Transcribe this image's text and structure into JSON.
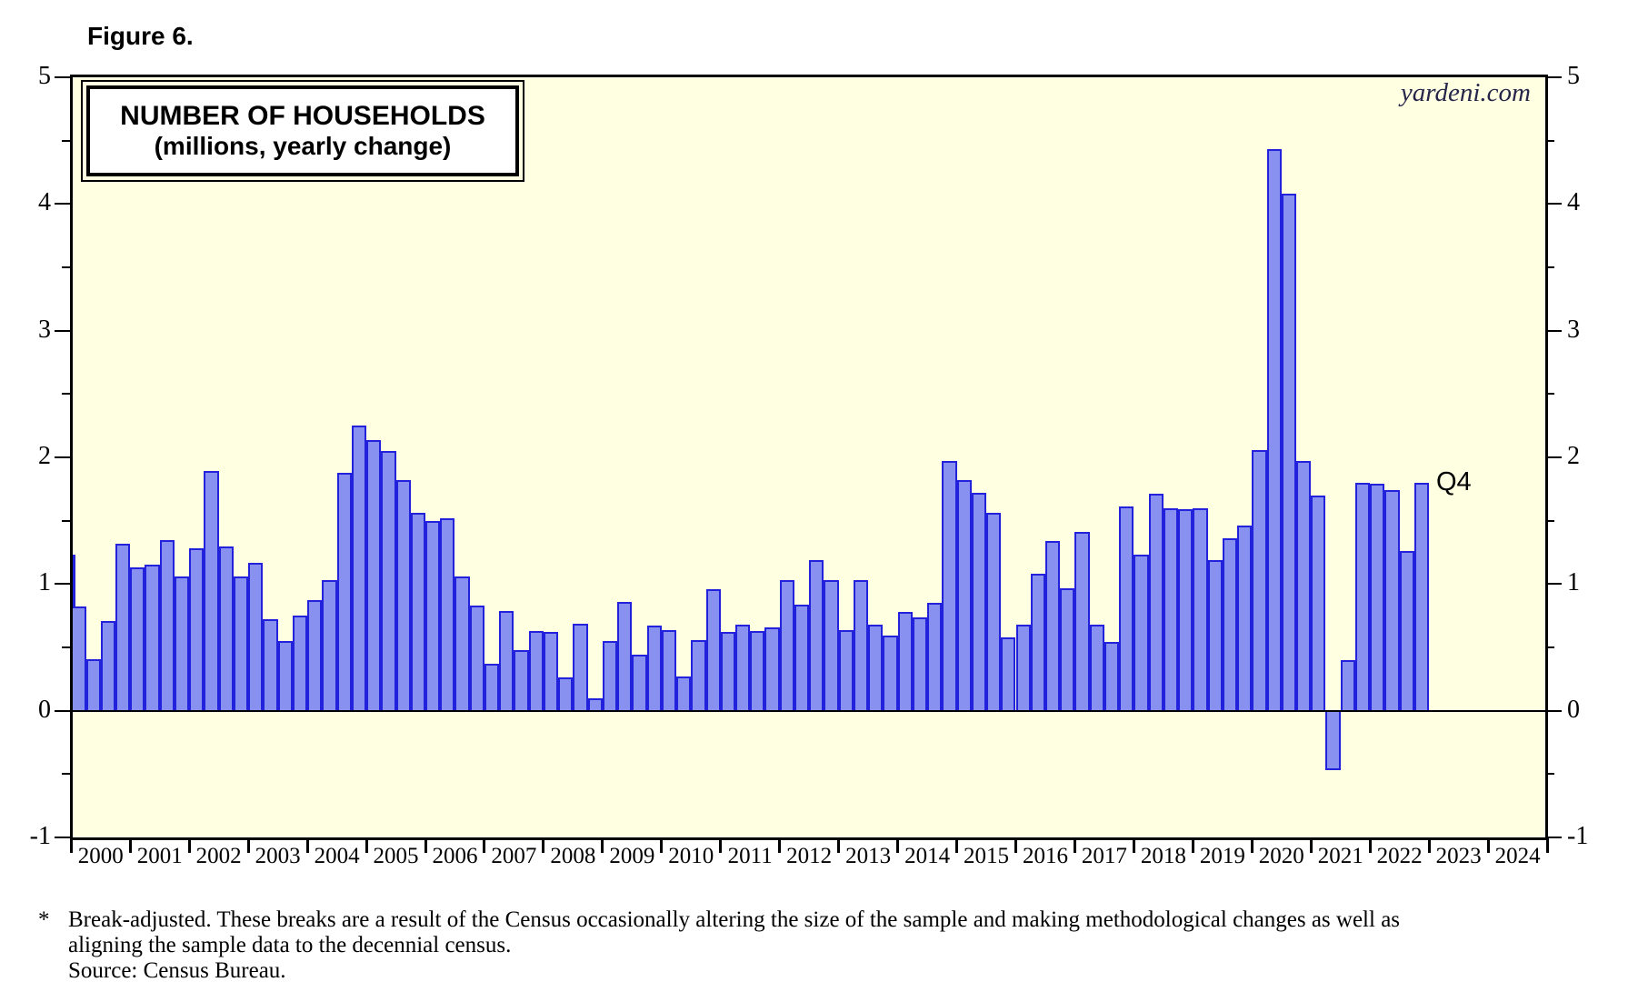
{
  "figure_label": "Figure 6.",
  "watermark": "yardeni.com",
  "footnote": {
    "star": "*",
    "line1": "Break-adjusted. These breaks are a result of the Census occasionally altering the size of the sample and making methodological changes as well as",
    "line2": "aligning the sample data to the decennial census.",
    "source": "Source: Census Bureau."
  },
  "colors": {
    "plot_bg": "#FFFFE1",
    "bar_fill": "#8991F0",
    "bar_border": "#2222DD",
    "frame": "#000000",
    "watermark_color": "#26264a"
  },
  "chart_data": {
    "type": "bar",
    "title": "NUMBER OF HOUSEHOLDS",
    "subtitle": "(millions, yearly change)",
    "units": "millions, yearly change",
    "ylim": [
      -1,
      5
    ],
    "y_major_ticks": [
      5,
      4,
      3,
      2,
      1,
      0,
      -1
    ],
    "y_minor_ticks": [
      4.5,
      3.5,
      2.5,
      1.5,
      0.5,
      -0.5
    ],
    "x_year_labels": [
      2000,
      2001,
      2002,
      2003,
      2004,
      2005,
      2006,
      2007,
      2008,
      2009,
      2010,
      2011,
      2012,
      2013,
      2014,
      2015,
      2016,
      2017,
      2018,
      2019,
      2020,
      2021,
      2022,
      2023,
      2024
    ],
    "grid": "off",
    "last_point_label": "Q4",
    "data_by_year": [
      {
        "year": 1999,
        "values": [
          null,
          null,
          null,
          1.23
        ]
      },
      {
        "year": 2000,
        "values": [
          0.82,
          0.41,
          0.71,
          1.32
        ]
      },
      {
        "year": 2001,
        "values": [
          1.13,
          1.15,
          1.35,
          1.06
        ]
      },
      {
        "year": 2002,
        "values": [
          1.28,
          1.89,
          1.3,
          1.06
        ]
      },
      {
        "year": 2003,
        "values": [
          1.17,
          0.72,
          0.55,
          0.75
        ]
      },
      {
        "year": 2004,
        "values": [
          0.87,
          1.03,
          1.88,
          2.25
        ]
      },
      {
        "year": 2005,
        "values": [
          2.14,
          2.05,
          1.82,
          1.56
        ]
      },
      {
        "year": 2006,
        "values": [
          1.5,
          1.52,
          1.06,
          0.83
        ]
      },
      {
        "year": 2007,
        "values": [
          0.37,
          0.79,
          0.48,
          0.63
        ]
      },
      {
        "year": 2008,
        "values": [
          0.62,
          0.26,
          0.69,
          0.1
        ]
      },
      {
        "year": 2009,
        "values": [
          0.55,
          0.86,
          0.44,
          0.67
        ]
      },
      {
        "year": 2010,
        "values": [
          0.64,
          0.27,
          0.56,
          0.96
        ]
      },
      {
        "year": 2011,
        "values": [
          0.62,
          0.68,
          0.63,
          0.66
        ]
      },
      {
        "year": 2012,
        "values": [
          1.03,
          0.84,
          1.19,
          1.03
        ]
      },
      {
        "year": 2013,
        "values": [
          0.64,
          1.03,
          0.68,
          0.59
        ]
      },
      {
        "year": 2014,
        "values": [
          0.78,
          0.74,
          0.85,
          1.97
        ]
      },
      {
        "year": 2015,
        "values": [
          1.82,
          1.72,
          1.56,
          0.58
        ]
      },
      {
        "year": 2016,
        "values": [
          0.68,
          1.08,
          1.34,
          0.97
        ]
      },
      {
        "year": 2017,
        "values": [
          1.41,
          0.68,
          0.54,
          1.61
        ]
      },
      {
        "year": 2018,
        "values": [
          1.23,
          1.71,
          1.6,
          1.59
        ]
      },
      {
        "year": 2019,
        "values": [
          1.6,
          1.19,
          1.36,
          1.46
        ]
      },
      {
        "year": 2020,
        "values": [
          2.06,
          4.43,
          4.08,
          1.97
        ]
      },
      {
        "year": 2021,
        "values": [
          1.7,
          -0.47,
          0.4,
          1.8
        ]
      },
      {
        "year": 2022,
        "values": [
          1.79,
          1.74,
          1.26,
          1.8
        ]
      }
    ]
  }
}
